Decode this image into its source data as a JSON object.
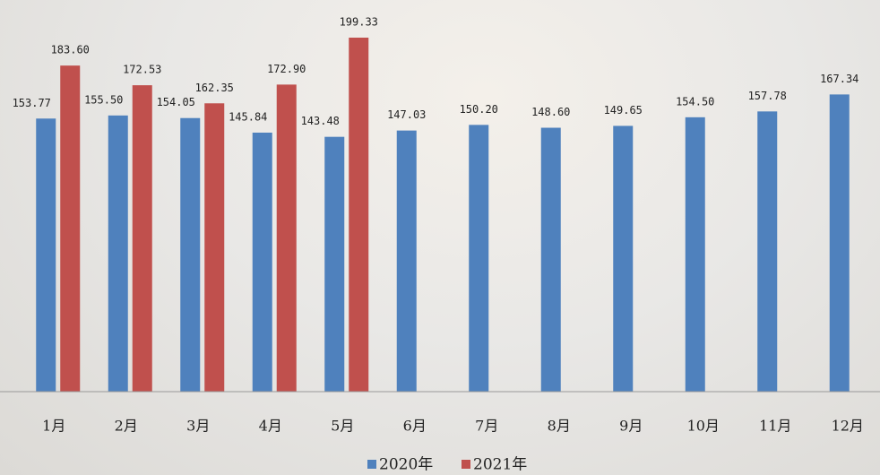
{
  "chart_data": {
    "type": "bar",
    "categories": [
      "1月",
      "2月",
      "3月",
      "4月",
      "5月",
      "6月",
      "7月",
      "8月",
      "9月",
      "10月",
      "11月",
      "12月"
    ],
    "series": [
      {
        "name": "2020年",
        "color": "#4f81bd",
        "values": [
          153.77,
          155.5,
          154.05,
          145.84,
          143.48,
          147.03,
          150.2,
          148.6,
          149.65,
          154.5,
          157.78,
          167.34
        ],
        "value_labels": [
          "153.77",
          "155.50",
          "154.05",
          "145.84",
          "143.48",
          "147.03",
          "150.20",
          "148.60",
          "149.65",
          "154.50",
          "157.78",
          "167.34"
        ]
      },
      {
        "name": "2021年",
        "color": "#c0504d",
        "values": [
          183.6,
          172.53,
          162.35,
          172.9,
          199.33,
          null,
          null,
          null,
          null,
          null,
          null,
          null
        ],
        "value_labels": [
          "183.60",
          "172.53",
          "162.35",
          "172.90",
          "199.33",
          null,
          null,
          null,
          null,
          null,
          null,
          null
        ]
      }
    ],
    "legend": "bottom"
  }
}
